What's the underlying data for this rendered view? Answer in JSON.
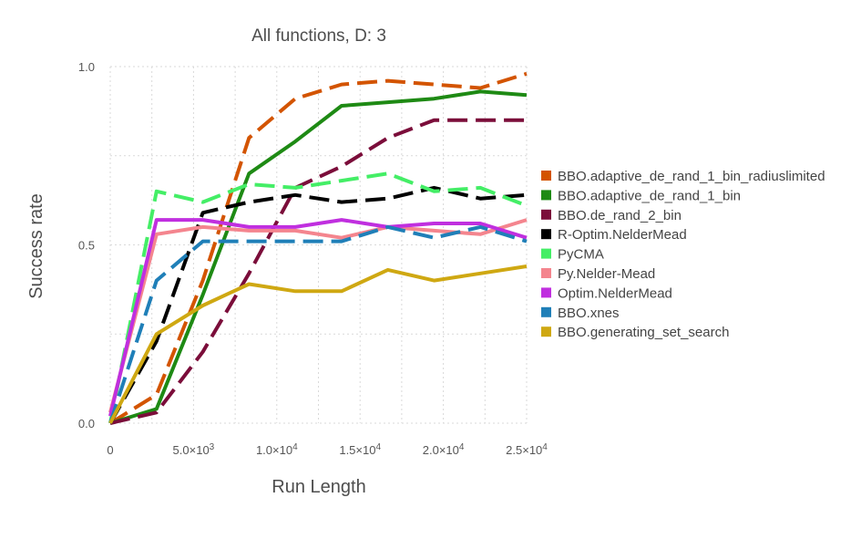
{
  "chart_data": {
    "type": "line",
    "title": "All functions, D: 3",
    "xlabel": "Run Length",
    "ylabel": "Success rate",
    "xlim": [
      0,
      25000
    ],
    "ylim": [
      0,
      1
    ],
    "xticks": [
      {
        "value": 0,
        "mant": "0",
        "exp": ""
      },
      {
        "value": 5000,
        "mant": "5.0×10",
        "exp": "3"
      },
      {
        "value": 10000,
        "mant": "1.0×10",
        "exp": "4"
      },
      {
        "value": 15000,
        "mant": "1.5×10",
        "exp": "4"
      },
      {
        "value": 20000,
        "mant": "2.0×10",
        "exp": "4"
      },
      {
        "value": 25000,
        "mant": "2.5×10",
        "exp": "4"
      }
    ],
    "yticks": [
      {
        "value": 0,
        "label": "0.0"
      },
      {
        "value": 0.5,
        "label": "0.5"
      },
      {
        "value": 1,
        "label": "1.0"
      }
    ],
    "grid": true,
    "legend_position": "right",
    "x": [
      0,
      2778,
      5556,
      8333,
      11111,
      13889,
      16667,
      19444,
      22222,
      25000
    ],
    "series": [
      {
        "name": "BBO.adaptive_de_rand_1_bin_radiuslimited",
        "color": "#d35400",
        "dash": "dashed",
        "values": [
          0.0,
          0.08,
          0.4,
          0.8,
          0.91,
          0.95,
          0.96,
          0.95,
          0.94,
          0.98
        ]
      },
      {
        "name": "BBO.adaptive_de_rand_1_bin",
        "color": "#1e8a14",
        "dash": "solid",
        "values": [
          0.0,
          0.04,
          0.36,
          0.7,
          0.79,
          0.89,
          0.9,
          0.91,
          0.93,
          0.92
        ]
      },
      {
        "name": "BBO.de_rand_2_bin",
        "color": "#7b0d3a",
        "dash": "dashed",
        "values": [
          0.0,
          0.03,
          0.2,
          0.42,
          0.66,
          0.72,
          0.8,
          0.85,
          0.85,
          0.85
        ]
      },
      {
        "name": "R-Optim.NelderMead",
        "color": "#000000",
        "dash": "dashed",
        "values": [
          0.0,
          0.23,
          0.59,
          0.62,
          0.64,
          0.62,
          0.63,
          0.66,
          0.63,
          0.64
        ]
      },
      {
        "name": "PyCMA",
        "color": "#44ee66",
        "dash": "dashed",
        "values": [
          0.0,
          0.65,
          0.62,
          0.67,
          0.66,
          0.68,
          0.7,
          0.65,
          0.66,
          0.61
        ]
      },
      {
        "name": "Py.Nelder-Mead",
        "color": "#f4858e",
        "dash": "solid",
        "values": [
          0.03,
          0.53,
          0.55,
          0.54,
          0.54,
          0.52,
          0.55,
          0.54,
          0.53,
          0.57
        ]
      },
      {
        "name": "Optim.NelderMead",
        "color": "#c02fdf",
        "dash": "solid",
        "values": [
          0.02,
          0.57,
          0.57,
          0.55,
          0.55,
          0.57,
          0.55,
          0.56,
          0.56,
          0.52
        ]
      },
      {
        "name": "BBO.xnes",
        "color": "#1f7fb8",
        "dash": "dashed",
        "values": [
          0.0,
          0.4,
          0.51,
          0.51,
          0.51,
          0.51,
          0.55,
          0.52,
          0.55,
          0.51
        ]
      },
      {
        "name": "BBO.generating_set_search",
        "color": "#cfa812",
        "dash": "solid",
        "values": [
          0.0,
          0.25,
          0.33,
          0.39,
          0.37,
          0.37,
          0.43,
          0.4,
          0.42,
          0.44
        ]
      }
    ]
  }
}
